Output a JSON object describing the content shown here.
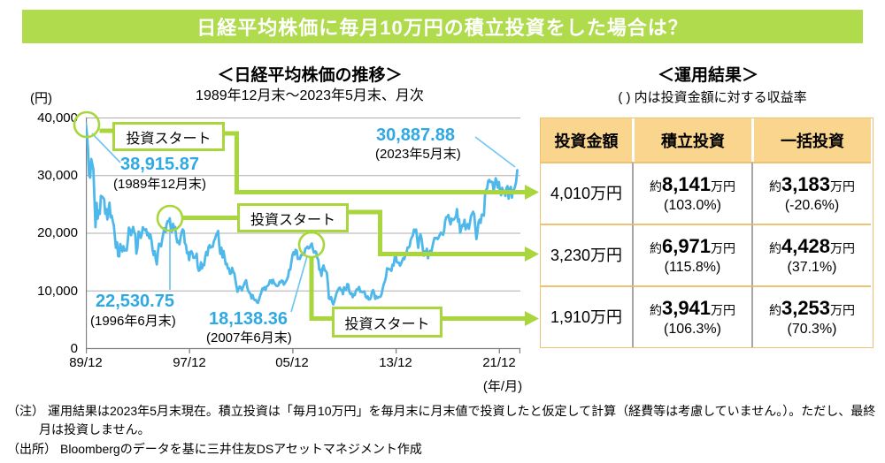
{
  "banner": {
    "title": "日経平均株価に毎月10万円の積立投資をした場合は？"
  },
  "chart": {
    "title": "＜日経平均株価の推移＞",
    "subtitle": "1989年12月末～2023年5月末、月次",
    "y_unit": "(円)",
    "y_ticks": [
      "40,000",
      "30,000",
      "20,000",
      "10,000",
      "0"
    ],
    "x_ticks": [
      "89/12",
      "97/12",
      "05/12",
      "13/12",
      "21/12"
    ],
    "x_unit": "(年/月)",
    "start_label": "投資スタート",
    "annotations": [
      {
        "id": "start-1989",
        "value": "38,915.87",
        "date": "(1989年12月末)"
      },
      {
        "id": "start-1996",
        "value": "22,530.75",
        "date": "(1996年6月末)"
      },
      {
        "id": "start-2007",
        "value": "18,138.36",
        "date": "(2007年6月末)"
      },
      {
        "id": "end-2023",
        "value": "30,887.88",
        "date": "(2023年5月末)"
      }
    ]
  },
  "chart_data": {
    "type": "line",
    "title": "日経平均株価の推移",
    "series_name": "日経平均株価",
    "x_start": "1989/12",
    "x_end": "2023/05",
    "frequency": "monthly",
    "xlabel": "年/月",
    "ylabel": "円",
    "ylim": [
      0,
      40000
    ],
    "x_tick_labels": [
      "89/12",
      "97/12",
      "05/12",
      "13/12",
      "21/12"
    ],
    "key_points": [
      {
        "date": "1989/12",
        "value": 38915.87
      },
      {
        "date": "1996/06",
        "value": 22530.75
      },
      {
        "date": "2007/06",
        "value": 18138.36
      },
      {
        "date": "2023/05",
        "value": 30887.88
      }
    ],
    "values": [
      38916,
      37189,
      34592,
      29980,
      29585,
      32818,
      31940,
      31036,
      25978,
      20984,
      25194,
      22455,
      23849,
      23293,
      26409,
      26292,
      26111,
      25790,
      23291,
      24121,
      22336,
      23916,
      25222,
      22687,
      22984,
      22023,
      21339,
      19346,
      17391,
      18348,
      15952,
      15910,
      18061,
      17399,
      16767,
      17684,
      16925,
      17024,
      16953,
      18591,
      20919,
      20552,
      19590,
      20380,
      21027,
      20105,
      19703,
      16406,
      17417,
      20229,
      19997,
      19112,
      19725,
      20974,
      20644,
      20450,
      20629,
      19564,
      19990,
      19071,
      19723,
      18650,
      17053,
      16140,
      16807,
      15437,
      14517,
      16677,
      18117,
      17913,
      17655,
      18880,
      19868,
      20813,
      20125,
      21407,
      22041,
      21956,
      22531,
      20693,
      20167,
      21556,
      20867,
      21021,
      19361,
      18330,
      18557,
      18003,
      19151,
      20069,
      20605,
      20331,
      18229,
      17888,
      16459,
      16636,
      15259,
      16628,
      16832,
      16527,
      15641,
      15671,
      15830,
      16379,
      14108,
      13406,
      13565,
      14884,
      13842,
      14499,
      14368,
      15837,
      16702,
      16112,
      17530,
      17861,
      17430,
      17605,
      17582,
      18558,
      18934,
      19539,
      19959,
      20337,
      17973,
      16332,
      17411,
      15727,
      16861,
      15747,
      14540,
      14649,
      13786,
      13843,
      12884,
      12999,
      13934,
      13262,
      12969,
      11861,
      10713,
      9775,
      10366,
      10697,
      10543,
      9997,
      10588,
      11025,
      11492,
      11764,
      10622,
      9878,
      9619,
      9383,
      8640,
      9216,
      8579,
      8340,
      8363,
      7973,
      7831,
      8425,
      9083,
      9563,
      10343,
      10219,
      10559,
      10100,
      10677,
      10784,
      11041,
      11715,
      11761,
      11236,
      11858,
      11326,
      11082,
      10824,
      10771,
      10899,
      11489,
      11387,
      11740,
      11668,
      11009,
      11276,
      11584,
      11946,
      12414,
      13574,
      13606,
      14872,
      16111,
      16649,
      16205,
      17060,
      16906,
      15467,
      15505,
      15457,
      16141,
      16128,
      16399,
      16274,
      17226,
      17383,
      17604,
      17288,
      17400,
      17876,
      18138,
      17249,
      16569,
      16786,
      16738,
      15681,
      15308,
      13592,
      13603,
      12526,
      13850,
      14339,
      13481,
      13377,
      13073,
      11260,
      8577,
      8512,
      8860,
      7994,
      7568,
      8110,
      8828,
      9523,
      9958,
      10357,
      10493,
      10133,
      10035,
      9346,
      10546,
      10198,
      10126,
      11090,
      11057,
      9769,
      9383,
      9537,
      8824,
      9369,
      9202,
      9937,
      10229,
      10237,
      10624,
      9755,
      9850,
      9694,
      9816,
      9833,
      8955,
      8700,
      8988,
      8435,
      8455,
      8803,
      9723,
      10084,
      9521,
      8543,
      9007,
      8695,
      8840,
      8870,
      8928,
      9446,
      10395,
      11139,
      11559,
      12398,
      13861,
      13775,
      13677,
      13668,
      13389,
      14456,
      14328,
      15662,
      16291,
      14915,
      14841,
      14828,
      14304,
      14632,
      15162,
      15621,
      15425,
      16174,
      16414,
      17460,
      17451,
      17674,
      18798,
      19207,
      19520,
      20563,
      20236,
      20585,
      18890,
      17388,
      19083,
      19747,
      19034,
      17518,
      16027,
      16759,
      16666,
      17235,
      15576,
      16569,
      16887,
      16450,
      17425,
      18308,
      19114,
      19041,
      19119,
      18909,
      19197,
      19651,
      20033,
      19925,
      19646,
      20356,
      22012,
      22725,
      22765,
      23098,
      22068,
      21454,
      22468,
      22202,
      22305,
      22554,
      22865,
      24120,
      21920,
      22351,
      20015,
      20773,
      21385,
      21206,
      22259,
      20601,
      21276,
      21522,
      20704,
      21756,
      22927,
      23294,
      23657,
      23205,
      21143,
      18917,
      20194,
      21878,
      22288,
      21710,
      23140,
      23185,
      22977,
      26434,
      27444,
      27663,
      28966,
      29179,
      28813,
      28860,
      28792,
      27284,
      28090,
      29453,
      28893,
      27822,
      28792,
      27002,
      26527,
      27821,
      26848,
      27280,
      26393,
      27802,
      28092,
      25937,
      27587,
      27968,
      26095,
      27327,
      27446,
      28041,
      28856,
      30888
    ]
  },
  "results": {
    "title": "＜運用結果＞",
    "subtitle": "( )  内は投資金額に対する収益率",
    "headers": [
      "投資金額",
      "積立投資",
      "一括投資"
    ],
    "approx": "約",
    "man_en": "万円",
    "rows": [
      {
        "amount": "4,010万円",
        "tsumitate": {
          "value": "8,141",
          "pct": "(103.0%)"
        },
        "ikkatsu": {
          "value": "3,183",
          "pct": "(-20.6%)"
        }
      },
      {
        "amount": "3,230万円",
        "tsumitate": {
          "value": "6,971",
          "pct": "(115.8%)"
        },
        "ikkatsu": {
          "value": "4,428",
          "pct": "(37.1%)"
        }
      },
      {
        "amount": "1,910万円",
        "tsumitate": {
          "value": "3,941",
          "pct": "(106.3%)"
        },
        "ikkatsu": {
          "value": "3,253",
          "pct": "(70.3%)"
        }
      }
    ]
  },
  "notes": {
    "note_label": "（注）",
    "note_text": "運用結果は2023年5月末現在。積立投資は「毎月10万円」を毎月末に月末値で投資したと仮定して計算（経費等は考慮していません。）。ただし、最終月は投資しません。",
    "source_label": "（出所）",
    "source_text": "Bloombergのデータを基に三井住友DSアセットマネジメント作成"
  },
  "colors": {
    "accent_green": "#AFDB4D",
    "line_blue": "#4FB8EA",
    "value_blue": "#2FA9E1",
    "header_tan": "#FAD58E",
    "table_border_tan": "#F0C173",
    "column_separator_gray": "#A6A6A6",
    "grid_gray": "#ADADAD"
  }
}
